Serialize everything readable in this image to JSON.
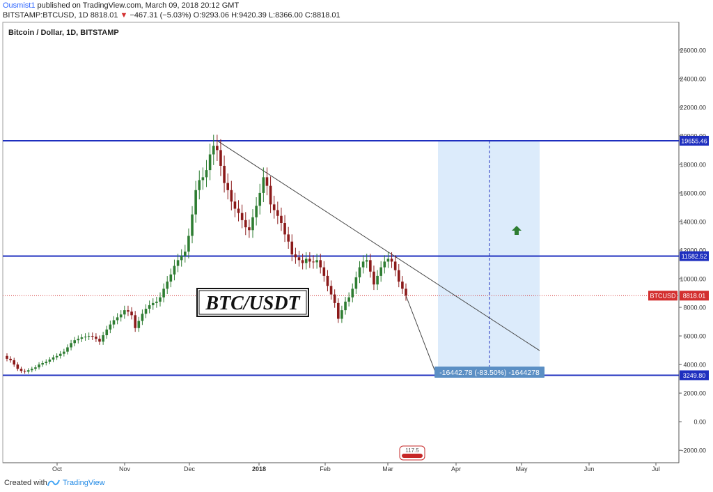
{
  "header": {
    "author": "Ousmist1",
    "published": "published on TradingView.com, March 09, 2018 20:12 GMT",
    "symbol": "BITSTAMP:BTCUSD, 1D",
    "last": "8818.01",
    "change_arrow": "▼",
    "change": "−467.31 (−5.03%)",
    "ohlc": "O:9293.06 H:9420.39 L:8366.00 C:8818.01"
  },
  "footer": {
    "created_with": "Created with",
    "brand": "TradingView",
    "brand_icon": "tradingview-logo-icon"
  },
  "chart_data": {
    "type": "candlestick",
    "title": "Bitcoin / Dollar, 1D, BITSTAMP",
    "overlay_label": "BTC/USDT",
    "y_ticks": [
      "26000.00",
      "24000.00",
      "22000.00",
      "20000.00",
      "18000.00",
      "16000.00",
      "14000.00",
      "12000.00",
      "10000.00",
      "8000.00",
      "6000.00",
      "4000.00",
      "2000.00",
      "0.00",
      "-2000.00"
    ],
    "x_ticks": [
      "Oct",
      "Nov",
      "Dec",
      "2018",
      "Feb",
      "Mar",
      "Apr",
      "May",
      "Jun",
      "Jul"
    ],
    "ylim": [
      -3600,
      27000
    ],
    "series": [
      {
        "name": "BTCUSD",
        "close": [
          4400,
          4300,
          4000,
          3700,
          3550,
          3500,
          3600,
          3700,
          3800,
          4000,
          4100,
          4200,
          4350,
          4500,
          4600,
          4750,
          4900,
          5200,
          5500,
          5700,
          5800,
          5900,
          5950,
          6000,
          5950,
          5800,
          5600,
          6050,
          6450,
          6800,
          7100,
          7300,
          7500,
          7800,
          7700,
          7450,
          6550,
          7050,
          7550,
          7900,
          8150,
          8300,
          8400,
          8700,
          9300,
          9800,
          10300,
          10900,
          11300,
          11600,
          11900,
          13000,
          14500,
          16200,
          16900,
          17100,
          17600,
          18700,
          19300,
          19000,
          17900,
          16700,
          16200,
          15400,
          14900,
          14600,
          14100,
          13600,
          13400,
          14300,
          15100,
          16000,
          17100,
          16500,
          15200,
          14800,
          14400,
          13900,
          13100,
          12600,
          11700,
          11500,
          11300,
          11100,
          11400,
          11200,
          11150,
          11300,
          10800,
          10200,
          9500,
          8900,
          8300,
          7200,
          7800,
          8400,
          8700,
          9300,
          10100,
          10800,
          11200,
          11300,
          10500,
          9600,
          10200,
          10800,
          11200,
          11400,
          11200,
          10600,
          9800,
          9300,
          8818
        ]
      },
      {
        "name": "Support 3249.80",
        "value": 3249.8
      },
      {
        "name": "Resistance 11582.52",
        "value": 11582.52
      },
      {
        "name": "Resistance 19655.46",
        "value": 19655.46
      },
      {
        "name": "Last 8818.01",
        "value": 8818.01
      }
    ],
    "price_labels": [
      "19655.46",
      "11582.52",
      "3249.80"
    ],
    "last_label": "BTCUSD",
    "last_value": "8818.01",
    "trendline": [
      [
        19655.46,
        4974
      ]
    ],
    "projection_box": {
      "top": 19655.46,
      "bottom": 3249.8
    },
    "measure_label": "-16442.78 (-83.50%) -1644278",
    "badge_text": "117.5",
    "colors": {
      "up": "#2e7d32",
      "down": "#8b1a1a",
      "level": "#1e2fbf",
      "last": "#d32f2f",
      "box_fill": "#dcebfb",
      "measure_bg": "#5b8fc4",
      "arrow": "#2e7d32",
      "grid_axis": "#555555"
    },
    "grid": false,
    "legend_position": "none"
  }
}
